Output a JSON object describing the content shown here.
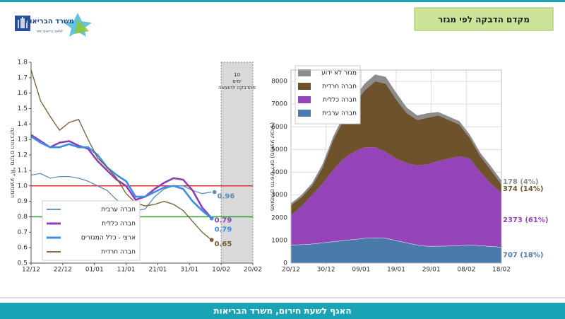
{
  "header": {
    "title": "מקדם הדבקה לפי מגזר",
    "logo_name": "משרד הבריאות",
    "logo_slogan": "לחיים בריאים יותר"
  },
  "footer": {
    "text": "האגף לשעת חירום, משרד הבריאות"
  },
  "chart_data": [
    {
      "type": "line",
      "y_label": "מקדם ההדבקה \"R\" הממוצע",
      "xlim": [
        0,
        70
      ],
      "ylim": [
        0.5,
        1.8
      ],
      "xticks": [
        {
          "value": 0,
          "label": "12/12"
        },
        {
          "value": 10,
          "label": "22/12"
        },
        {
          "value": 20,
          "label": "01/01"
        },
        {
          "value": 30,
          "label": "11/01"
        },
        {
          "value": 40,
          "label": "21/01"
        },
        {
          "value": 50,
          "label": "31/01"
        },
        {
          "value": 60,
          "label": "10/02"
        },
        {
          "value": 70,
          "label": "20/02"
        }
      ],
      "yticks": [
        0.5,
        0.6,
        0.7,
        0.8,
        0.9,
        {
          "value": 1,
          "label": "1.0"
        },
        1.1,
        1.2,
        1.3,
        1.4,
        1.5,
        1.6,
        1.7,
        1.8
      ],
      "reference_lines": [
        {
          "value": 1,
          "color": "#e03030"
        },
        {
          "value": 0.8,
          "color": "#2ca02c"
        }
      ],
      "shaded_region": {
        "x": [
          60,
          70
        ],
        "label": "10 ימים מהדבקה להוצאה"
      },
      "x": [
        0,
        3,
        6,
        9,
        12,
        15,
        18,
        21,
        24,
        27,
        30,
        33,
        36,
        39,
        42,
        45,
        48,
        51,
        54,
        57
      ],
      "series": [
        {
          "name": "חברה ערבית",
          "color": "#5b8db8",
          "width": 1.3,
          "values": [
            1.07,
            1.08,
            1.05,
            1.06,
            1.06,
            1.05,
            1.03,
            1.0,
            0.97,
            0.91,
            0.86,
            0.84,
            0.85,
            0.93,
            0.98,
            1.0,
            1.0,
            0.97,
            0.95,
            0.96
          ]
        },
        {
          "name": "חברה כללית",
          "color": "#8e3fb5",
          "width": 2.6,
          "values": [
            1.33,
            1.29,
            1.25,
            1.28,
            1.29,
            1.26,
            1.24,
            1.16,
            1.1,
            1.04,
            1.0,
            0.91,
            0.93,
            0.98,
            1.02,
            1.05,
            1.04,
            0.97,
            0.86,
            0.79
          ]
        },
        {
          "name": "ארצי - כלל המגזרים",
          "color": "#3a8ee6",
          "width": 2.6,
          "values": [
            1.32,
            1.28,
            1.25,
            1.25,
            1.27,
            1.25,
            1.25,
            1.2,
            1.12,
            1.07,
            1.03,
            0.93,
            0.93,
            0.96,
            0.99,
            1.0,
            0.98,
            0.9,
            0.84,
            0.79
          ]
        },
        {
          "name": "חברה חרדית",
          "color": "#7a5a30",
          "width": 1.3,
          "values": [
            1.75,
            1.55,
            1.45,
            1.36,
            1.41,
            1.43,
            1.3,
            1.18,
            1.12,
            1.05,
            0.95,
            0.89,
            0.87,
            0.88,
            0.9,
            0.88,
            0.84,
            0.77,
            0.7,
            0.65
          ]
        }
      ]
    },
    {
      "type": "stacked_area",
      "y_label": "מאומתים חדשים ליום (ממוצע שבועי)",
      "grid": true,
      "xlim": [
        0,
        60
      ],
      "ylim": [
        0,
        8500
      ],
      "xticks": [
        {
          "value": 0,
          "label": "20/12"
        },
        {
          "value": 10,
          "label": "30/12"
        },
        {
          "value": 20,
          "label": "09/01"
        },
        {
          "value": 30,
          "label": "19/01"
        },
        {
          "value": 40,
          "label": "29/01"
        },
        {
          "value": 50,
          "label": "08/02"
        },
        {
          "value": 60,
          "label": "18/02"
        }
      ],
      "yticks": [
        0,
        1000,
        2000,
        3000,
        4000,
        5000,
        6000,
        7000,
        8000
      ],
      "x": [
        0,
        3,
        6,
        9,
        12,
        15,
        18,
        21,
        24,
        27,
        30,
        33,
        36,
        39,
        42,
        45,
        48,
        51,
        54,
        57,
        60
      ],
      "series": [
        {
          "name": "חברה ערבית",
          "color": "#4a7aaa",
          "end_label": "707 (18%)",
          "values": [
            800,
            820,
            850,
            900,
            950,
            1000,
            1050,
            1100,
            1120,
            1100,
            1000,
            900,
            800,
            750,
            750,
            760,
            780,
            800,
            780,
            740,
            707
          ]
        },
        {
          "name": "חברה כללית",
          "color": "#9444b8",
          "end_label": "2373 (61%)",
          "values": [
            1300,
            1680,
            2150,
            2600,
            3150,
            3600,
            3850,
            4000,
            3980,
            3800,
            3600,
            3500,
            3500,
            3600,
            3750,
            3840,
            3920,
            3800,
            3220,
            2760,
            2373
          ]
        },
        {
          "name": "חברה חרדית",
          "color": "#6e522c",
          "end_label": "374 (14%)",
          "values": [
            450,
            400,
            400,
            700,
            1300,
            1700,
            2100,
            2500,
            2900,
            3000,
            2600,
            2200,
            2000,
            2050,
            2000,
            1700,
            1400,
            900,
            700,
            600,
            374
          ]
        },
        {
          "name": "מגזר לא ידוע",
          "color": "#8c8c8c",
          "end_label": "178 (4%)",
          "values": [
            80,
            100,
            120,
            150,
            150,
            200,
            250,
            300,
            300,
            300,
            300,
            250,
            200,
            200,
            150,
            150,
            150,
            150,
            150,
            160,
            178
          ]
        }
      ]
    }
  ]
}
